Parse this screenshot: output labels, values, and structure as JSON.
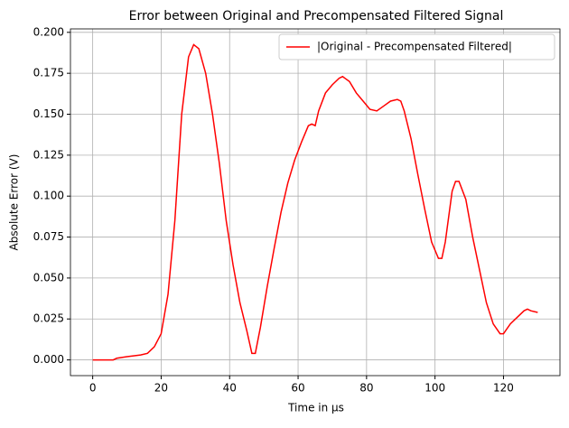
{
  "chart_data": {
    "type": "line",
    "title": "Error between Original and Precompensated Filtered Signal",
    "x_label": "Time in µs",
    "y_label": "Absolute Error (V)",
    "x": [
      0,
      2,
      4,
      6,
      7,
      10,
      14,
      16,
      18,
      20,
      22,
      24,
      26,
      28,
      29.5,
      31,
      33,
      35,
      37,
      39,
      41,
      43,
      45,
      46.5,
      47.5,
      49,
      51,
      53,
      55,
      57,
      59,
      61,
      63,
      64,
      65,
      66,
      68,
      70,
      72,
      73,
      75,
      77,
      79,
      81,
      83,
      85,
      87,
      89,
      90,
      91,
      93,
      95,
      97,
      99,
      101,
      102,
      103,
      105,
      106,
      107,
      109,
      111,
      113,
      115,
      117,
      119,
      120,
      122,
      124,
      126,
      127,
      128,
      130
    ],
    "series": [
      {
        "name": "|Original - Precompensated Filtered|",
        "color": "#ff0000",
        "values": [
          0,
          0,
          0,
          0,
          0.001,
          0.002,
          0.003,
          0.004,
          0.008,
          0.016,
          0.04,
          0.085,
          0.15,
          0.185,
          0.1925,
          0.19,
          0.175,
          0.15,
          0.12,
          0.085,
          0.058,
          0.035,
          0.018,
          0.004,
          0.004,
          0.02,
          0.045,
          0.068,
          0.09,
          0.108,
          0.122,
          0.133,
          0.143,
          0.144,
          0.143,
          0.152,
          0.163,
          0.168,
          0.172,
          0.173,
          0.17,
          0.163,
          0.158,
          0.153,
          0.152,
          0.155,
          0.158,
          0.159,
          0.158,
          0.152,
          0.135,
          0.113,
          0.092,
          0.072,
          0.062,
          0.062,
          0.072,
          0.103,
          0.109,
          0.109,
          0.098,
          0.075,
          0.055,
          0.035,
          0.022,
          0.016,
          0.016,
          0.022,
          0.026,
          0.03,
          0.031,
          0.03,
          0.029
        ]
      }
    ],
    "xlim": [
      -6.5,
      136.5
    ],
    "ylim": [
      -0.0096,
      0.2021
    ],
    "xticks": [
      0,
      20,
      40,
      60,
      80,
      100,
      120
    ],
    "yticks": [
      {
        "value": 0,
        "label": "0.000"
      },
      {
        "value": 0.025,
        "label": "0.025"
      },
      {
        "value": 0.05,
        "label": "0.050"
      },
      {
        "value": 0.075,
        "label": "0.075"
      },
      {
        "value": 0.1,
        "label": "0.100"
      },
      {
        "value": 0.125,
        "label": "0.125"
      },
      {
        "value": 0.15,
        "label": "0.150"
      },
      {
        "value": 0.175,
        "label": "0.175"
      },
      {
        "value": 0.2,
        "label": "0.200"
      }
    ],
    "grid": true,
    "legend": "upper-right"
  }
}
